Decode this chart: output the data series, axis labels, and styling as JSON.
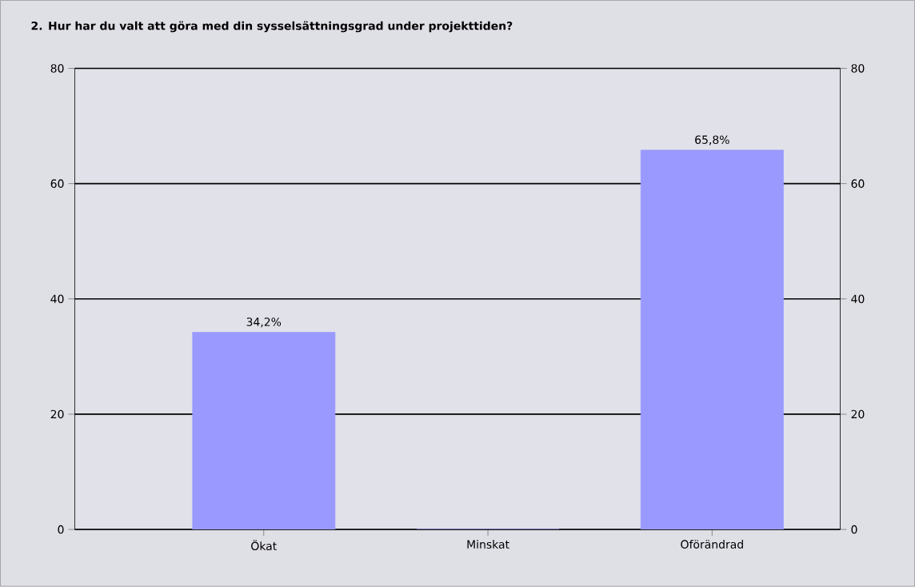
{
  "chart_data": {
    "type": "bar",
    "title": "2. Hur har du valt att göra med din sysselsättningsgrad under projekttiden?",
    "categories": [
      "Ökat",
      "Minskat",
      "Oförändrad"
    ],
    "values": [
      34.2,
      0,
      65.8
    ],
    "value_labels": [
      "34,2%",
      null,
      "65,8%"
    ],
    "color": "#9999ff",
    "ylim": [
      0,
      80
    ],
    "yticks": [
      0,
      20,
      40,
      60,
      80
    ],
    "y2lim": [
      0,
      80
    ],
    "y2ticks": [
      0,
      20,
      40,
      60,
      80
    ],
    "grid": "y"
  }
}
